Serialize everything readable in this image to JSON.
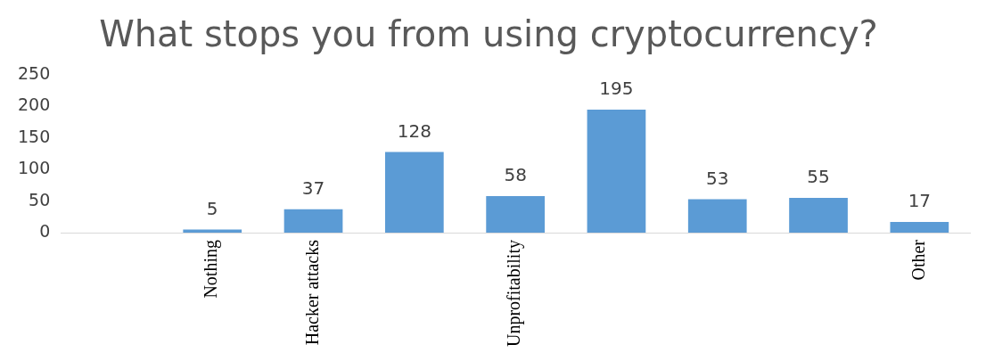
{
  "chart_data": {
    "type": "bar",
    "title": "What stops you from using cryptocurrency?",
    "categories": [
      null,
      "Nothing",
      "Hacker attacks",
      null,
      "Unprofitability",
      null,
      null,
      null,
      "Other"
    ],
    "values": [
      null,
      5,
      37,
      128,
      58,
      195,
      53,
      55,
      17
    ],
    "color": "#5b9bd5",
    "ylim": [
      0,
      250
    ],
    "yticks": [
      0,
      50,
      100,
      150,
      200,
      250
    ],
    "grid": false,
    "data_labels": true
  }
}
